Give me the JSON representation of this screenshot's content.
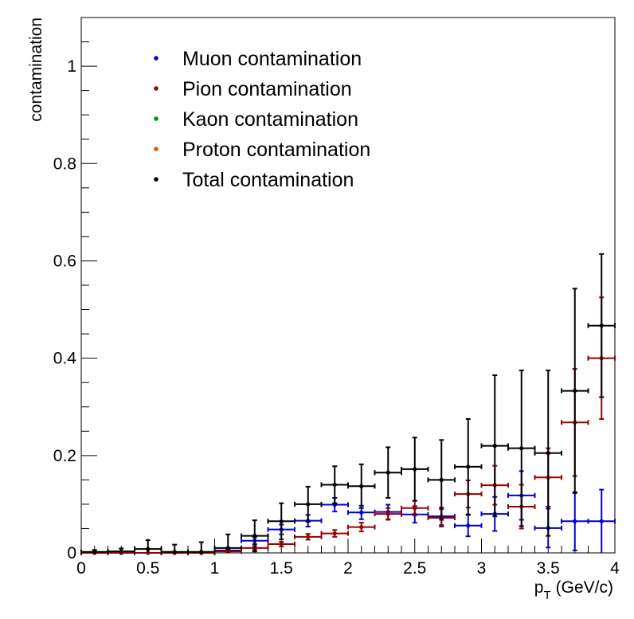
{
  "chart_data": {
    "type": "scatter",
    "xlabel": "p",
    "xlabel_sub": "T",
    "xlabel_unit": "(GeV/c)",
    "ylabel": "contamination",
    "xlim": [
      0,
      4
    ],
    "ylim": [
      0,
      1.1
    ],
    "x_ticks": [
      0,
      0.5,
      1,
      1.5,
      2,
      2.5,
      3,
      3.5,
      4
    ],
    "x_tick_labels": [
      "0",
      "0.5",
      "1",
      "1.5",
      "2",
      "2.5",
      "3",
      "3.5",
      "4"
    ],
    "y_ticks": [
      0,
      0.2,
      0.4,
      0.6,
      0.8,
      1
    ],
    "y_tick_labels": [
      "0",
      "0.2",
      "0.4",
      "0.6",
      "0.8",
      "1"
    ],
    "grid": false,
    "legend_position": "top-left",
    "bin_half_width": 0.1,
    "series": [
      {
        "name": "Muon contamination",
        "color": "#0000cc",
        "x": [
          0.1,
          0.3,
          0.5,
          0.7,
          0.9,
          1.1,
          1.3,
          1.5,
          1.7,
          1.9,
          2.1,
          2.3,
          2.5,
          2.7,
          2.9,
          3.1,
          3.3,
          3.5,
          3.7,
          3.9
        ],
        "y": [
          0,
          0,
          0,
          0,
          0,
          0.005,
          0.025,
          0.048,
          0.066,
          0.099,
          0.083,
          0.084,
          0.079,
          0.075,
          0.056,
          0.08,
          0.118,
          0.051,
          0.065,
          0.065
        ],
        "yerr": [
          0,
          0,
          0,
          0,
          0,
          0.003,
          0.007,
          0.01,
          0.012,
          0.014,
          0.014,
          0.015,
          0.017,
          0.018,
          0.022,
          0.035,
          0.05,
          0.04,
          0.06,
          0.065
        ]
      },
      {
        "name": "Pion contamination",
        "color": "#990000",
        "x": [
          0.1,
          0.3,
          0.5,
          0.7,
          0.9,
          1.1,
          1.3,
          1.5,
          1.7,
          1.9,
          2.1,
          2.3,
          2.5,
          2.7,
          2.9,
          3.1,
          3.3,
          3.5,
          3.7,
          3.9
        ],
        "y": [
          0,
          0,
          0,
          0,
          0,
          0.003,
          0.01,
          0.018,
          0.033,
          0.04,
          0.053,
          0.08,
          0.092,
          0.072,
          0.121,
          0.139,
          0.095,
          0.155,
          0.268,
          0.4
        ],
        "yerr": [
          0,
          0,
          0,
          0,
          0,
          0.002,
          0.004,
          0.005,
          0.006,
          0.007,
          0.009,
          0.012,
          0.015,
          0.018,
          0.028,
          0.04,
          0.045,
          0.06,
          0.11,
          0.125
        ]
      },
      {
        "name": "Kaon contamination",
        "color": "#009900",
        "x": [],
        "y": [],
        "yerr": []
      },
      {
        "name": "Proton contamination",
        "color": "#cc6600",
        "x": [],
        "y": [],
        "yerr": []
      },
      {
        "name": "Total contamination",
        "color": "#000000",
        "x": [
          0.1,
          0.3,
          0.5,
          0.7,
          0.9,
          1.1,
          1.3,
          1.5,
          1.7,
          1.9,
          2.1,
          2.3,
          2.5,
          2.7,
          2.9,
          3.1,
          3.3,
          3.5,
          3.7,
          3.9
        ],
        "y": [
          0.002,
          0.003,
          0.008,
          0.002,
          0.002,
          0.01,
          0.035,
          0.065,
          0.1,
          0.14,
          0.137,
          0.165,
          0.172,
          0.15,
          0.177,
          0.22,
          0.215,
          0.205,
          0.333,
          0.467
        ],
        "yerr": [
          0.004,
          0.006,
          0.018,
          0.015,
          0.02,
          0.028,
          0.032,
          0.037,
          0.036,
          0.038,
          0.045,
          0.052,
          0.065,
          0.082,
          0.098,
          0.145,
          0.16,
          0.17,
          0.21,
          0.147
        ]
      }
    ]
  }
}
